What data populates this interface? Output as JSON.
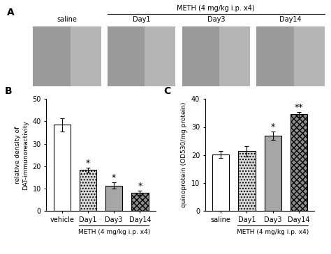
{
  "panel_a": {
    "title": "A",
    "group_label": "METH (4 mg/kg i.p. x4)",
    "images": [
      "saline",
      "Day1",
      "Day3",
      "Day14"
    ]
  },
  "chart_data": [
    {
      "type": "bar",
      "title": "B",
      "y_label": "relative density of\nDAT-immunoreactivity",
      "categories": [
        "vehicle",
        "Day1",
        "Day3",
        "Day14"
      ],
      "values": [
        38.5,
        18.2,
        11.3,
        8.0
      ],
      "errors": [
        3.0,
        1.2,
        1.5,
        0.9
      ],
      "significance": [
        null,
        "*",
        "*",
        "*"
      ],
      "group_label": "METH (4 mg/kg i.p. x4)",
      "colors": [
        "#ffffff",
        "#d9d9d9",
        "#a6a6a6",
        "#8c8c8c"
      ],
      "ylim": [
        0,
        50
      ],
      "yticks": [
        0,
        10,
        20,
        30,
        40,
        50
      ],
      "grid": false
    },
    {
      "type": "bar",
      "title": "C",
      "y_label": "quinoprotein (OD530/mg protein)",
      "categories": [
        "saline",
        "Day1",
        "Day3",
        "Day14"
      ],
      "values": [
        20.2,
        21.3,
        27.0,
        34.5
      ],
      "errors": [
        1.2,
        1.8,
        1.5,
        0.9
      ],
      "significance": [
        null,
        null,
        "*",
        "**"
      ],
      "group_label": "METH (4 mg/kg i.p. x4)",
      "colors": [
        "#ffffff",
        "#d9d9d9",
        "#a6a6a6",
        "#8c8c8c"
      ],
      "ylim": [
        0,
        40
      ],
      "yticks": [
        0,
        10,
        20,
        30,
        40
      ],
      "grid": false
    }
  ]
}
